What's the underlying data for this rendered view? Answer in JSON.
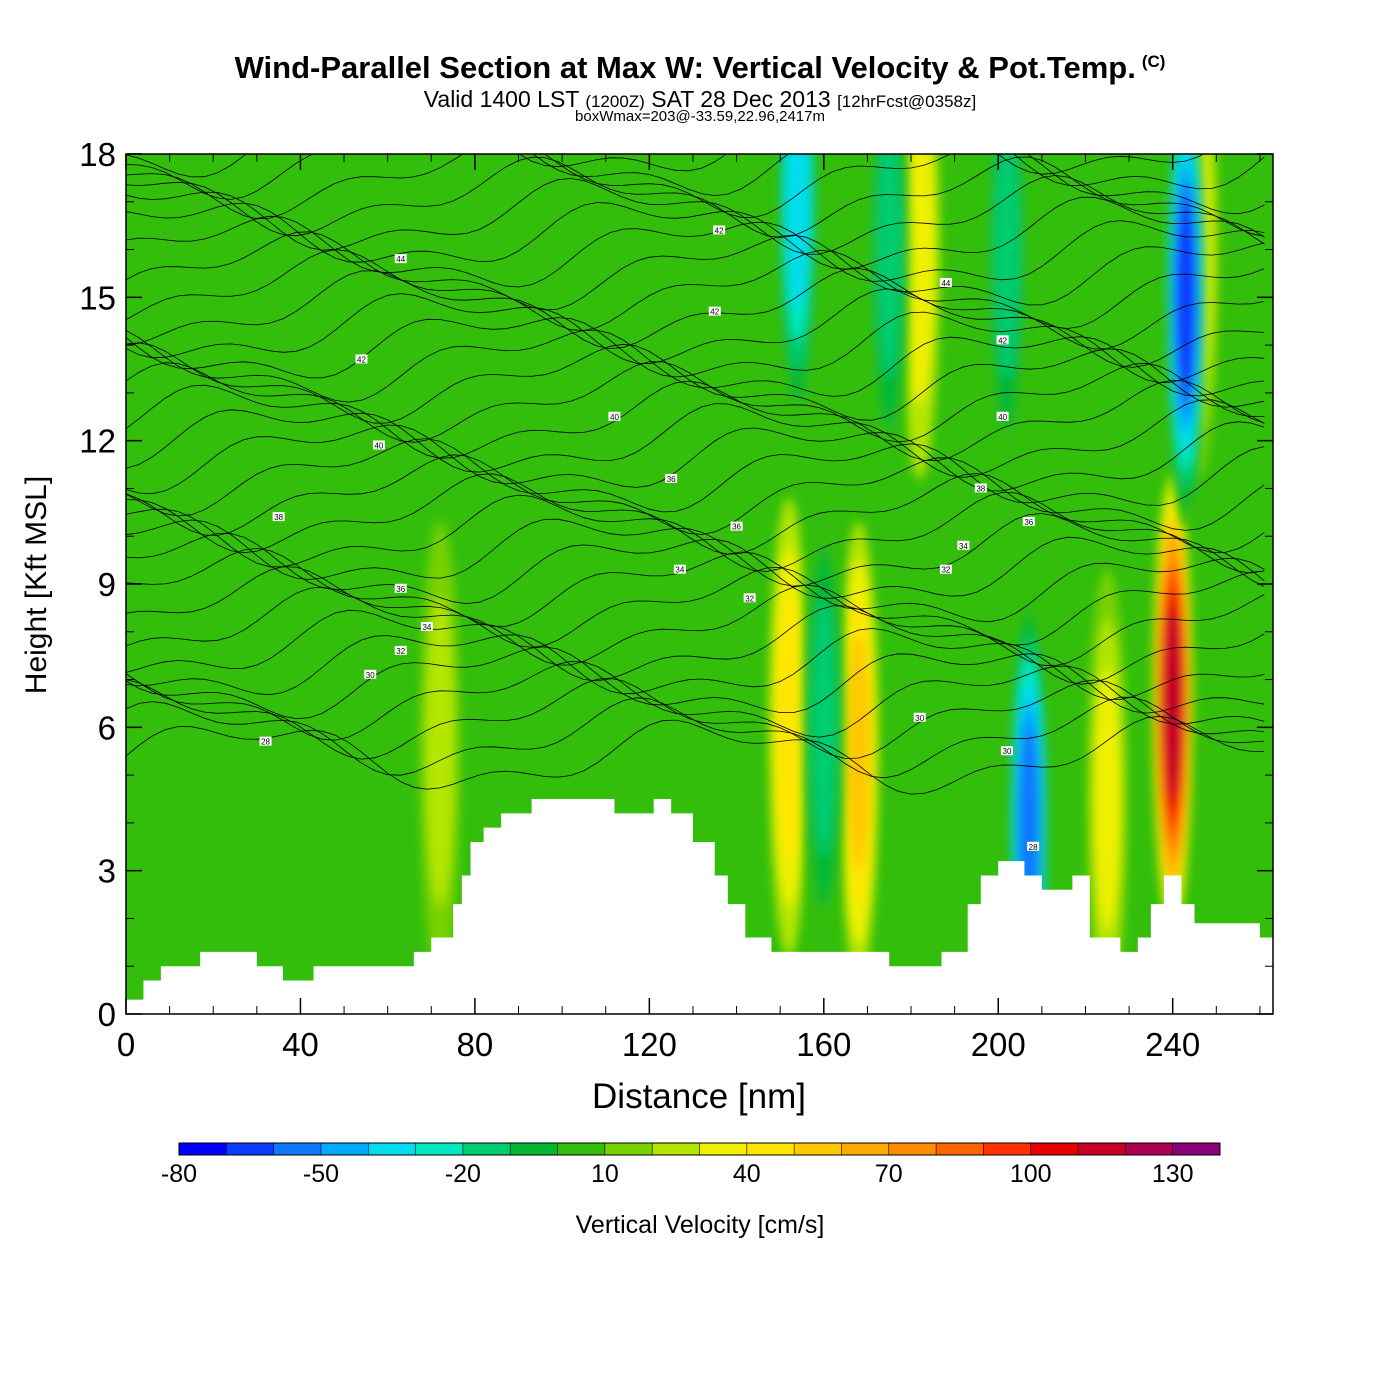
{
  "header": {
    "title": "Wind-Parallel Section at Max W: Vertical Velocity & Pot.Temp.",
    "copyright": "(C)",
    "valid_prefix": "Valid 1400 LST",
    "valid_utc": "(1200Z)",
    "valid_date": "SAT 28 Dec 2013",
    "forecast": "[12hrFcst@0358z]",
    "box_wmax": "boxWmax=203@-33.59,22.96,2417m"
  },
  "chart_data": {
    "type": "heatmap",
    "xlabel": "Distance [nm]",
    "ylabel": "Height [Kft MSL]",
    "xlim": [
      0,
      263
    ],
    "ylim": [
      0,
      18
    ],
    "x_ticks": [
      "0",
      "40",
      "80",
      "120",
      "160",
      "200",
      "240"
    ],
    "y_ticks": [
      "0",
      "3",
      "6",
      "9",
      "12",
      "15",
      "18"
    ],
    "colorbar": {
      "label": "Vertical Velocity [cm/s]",
      "levels": [
        -80,
        -70,
        -60,
        -50,
        -40,
        -30,
        -20,
        -10,
        0,
        10,
        20,
        30,
        40,
        50,
        60,
        70,
        80,
        90,
        100,
        110,
        120,
        130,
        140
      ],
      "tick_labels": [
        "-80",
        "-50",
        "-20",
        "10",
        "40",
        "70",
        "100",
        "130"
      ],
      "colors": [
        "#0000ff",
        "#0a3cff",
        "#0a78ff",
        "#00aaff",
        "#00ddee",
        "#00e8c0",
        "#00cc70",
        "#00b832",
        "#32be0a",
        "#78d200",
        "#b4e600",
        "#f0f000",
        "#ffe600",
        "#ffc800",
        "#ffaa00",
        "#ff8c00",
        "#ff6400",
        "#ff3200",
        "#e60000",
        "#c80028",
        "#aa0050",
        "#8c0078"
      ]
    },
    "terrain": [
      [
        0,
        0.3
      ],
      [
        4,
        0.3
      ],
      [
        4,
        0.7
      ],
      [
        8,
        0.7
      ],
      [
        8,
        1.0
      ],
      [
        17,
        1.0
      ],
      [
        17,
        1.3
      ],
      [
        30,
        1.3
      ],
      [
        30,
        1.0
      ],
      [
        36,
        1.0
      ],
      [
        36,
        0.7
      ],
      [
        43,
        0.7
      ],
      [
        43,
        1.0
      ],
      [
        66,
        1.0
      ],
      [
        66,
        1.3
      ],
      [
        70,
        1.3
      ],
      [
        70,
        1.6
      ],
      [
        75,
        1.6
      ],
      [
        75,
        2.3
      ],
      [
        77,
        2.3
      ],
      [
        77,
        2.9
      ],
      [
        79,
        2.9
      ],
      [
        79,
        3.6
      ],
      [
        82,
        3.6
      ],
      [
        82,
        3.9
      ],
      [
        86,
        3.9
      ],
      [
        86,
        4.2
      ],
      [
        93,
        4.2
      ],
      [
        93,
        4.5
      ],
      [
        112,
        4.5
      ],
      [
        112,
        4.2
      ],
      [
        121,
        4.2
      ],
      [
        121,
        4.5
      ],
      [
        125,
        4.5
      ],
      [
        125,
        4.2
      ],
      [
        130,
        4.2
      ],
      [
        130,
        3.6
      ],
      [
        135,
        3.6
      ],
      [
        135,
        2.9
      ],
      [
        138,
        2.9
      ],
      [
        138,
        2.3
      ],
      [
        142,
        2.3
      ],
      [
        142,
        1.6
      ],
      [
        148,
        1.6
      ],
      [
        148,
        1.3
      ],
      [
        175,
        1.3
      ],
      [
        175,
        1.0
      ],
      [
        187,
        1.0
      ],
      [
        187,
        1.3
      ],
      [
        193,
        1.3
      ],
      [
        193,
        2.3
      ],
      [
        196,
        2.3
      ],
      [
        196,
        2.9
      ],
      [
        200,
        2.9
      ],
      [
        200,
        3.2
      ],
      [
        206,
        3.2
      ],
      [
        206,
        2.9
      ],
      [
        210,
        2.9
      ],
      [
        210,
        2.6
      ],
      [
        217,
        2.6
      ],
      [
        217,
        2.9
      ],
      [
        221,
        2.9
      ],
      [
        221,
        1.6
      ],
      [
        228,
        1.6
      ],
      [
        228,
        1.3
      ],
      [
        232,
        1.3
      ],
      [
        232,
        1.6
      ],
      [
        235,
        1.6
      ],
      [
        235,
        2.3
      ],
      [
        238,
        2.3
      ],
      [
        238,
        2.9
      ],
      [
        242,
        2.9
      ],
      [
        242,
        2.3
      ],
      [
        245,
        2.3
      ],
      [
        245,
        1.9
      ],
      [
        260,
        1.9
      ],
      [
        260,
        1.6
      ],
      [
        263,
        1.6
      ]
    ],
    "updraft_bands": [
      {
        "x": 240,
        "y": 6.5,
        "w_cm_s": 110
      },
      {
        "x": 168,
        "y": 5.5,
        "w_cm_s": 50
      },
      {
        "x": 152,
        "y": 6.0,
        "w_cm_s": 40
      },
      {
        "x": 225,
        "y": 4.5,
        "w_cm_s": 35
      },
      {
        "x": 246,
        "y": 16.0,
        "w_cm_s": 35
      },
      {
        "x": 182,
        "y": 16.0,
        "w_cm_s": 30
      },
      {
        "x": 72,
        "y": 5.5,
        "w_cm_s": 25
      }
    ],
    "downdraft_bands": [
      {
        "x": 207,
        "y": 4.0,
        "w_cm_s": -60
      },
      {
        "x": 243,
        "y": 15.0,
        "w_cm_s": -70
      },
      {
        "x": 154,
        "y": 17.0,
        "w_cm_s": -40
      },
      {
        "x": 160,
        "y": 6.0,
        "w_cm_s": -20
      },
      {
        "x": 175,
        "y": 16.0,
        "w_cm_s": -20
      },
      {
        "x": 202,
        "y": 16.0,
        "w_cm_s": -20
      }
    ],
    "isentrope_labels": [
      {
        "text": "28",
        "x": 32,
        "y": 5.7
      },
      {
        "text": "30",
        "x": 56,
        "y": 7.1
      },
      {
        "text": "32",
        "x": 63,
        "y": 7.6
      },
      {
        "text": "34",
        "x": 69,
        "y": 8.1
      },
      {
        "text": "36",
        "x": 63,
        "y": 8.9
      },
      {
        "text": "38",
        "x": 35,
        "y": 10.4
      },
      {
        "text": "40",
        "x": 58,
        "y": 11.9
      },
      {
        "text": "42",
        "x": 54,
        "y": 13.7
      },
      {
        "text": "44",
        "x": 63,
        "y": 15.8
      },
      {
        "text": "40",
        "x": 112,
        "y": 12.5
      },
      {
        "text": "36",
        "x": 125,
        "y": 11.2
      },
      {
        "text": "34",
        "x": 127,
        "y": 9.3
      },
      {
        "text": "36",
        "x": 140,
        "y": 10.2
      },
      {
        "text": "32",
        "x": 143,
        "y": 8.7
      },
      {
        "text": "42",
        "x": 135,
        "y": 14.7
      },
      {
        "text": "42",
        "x": 136,
        "y": 16.4
      },
      {
        "text": "32",
        "x": 188,
        "y": 9.3
      },
      {
        "text": "34",
        "x": 192,
        "y": 9.8
      },
      {
        "text": "38",
        "x": 196,
        "y": 11.0
      },
      {
        "text": "36",
        "x": 207,
        "y": 10.3
      },
      {
        "text": "40",
        "x": 201,
        "y": 12.5
      },
      {
        "text": "42",
        "x": 201,
        "y": 14.1
      },
      {
        "text": "44",
        "x": 188,
        "y": 15.3
      },
      {
        "text": "30",
        "x": 182,
        "y": 6.2
      },
      {
        "text": "30",
        "x": 202,
        "y": 5.5
      },
      {
        "text": "28",
        "x": 208,
        "y": 3.5
      }
    ]
  }
}
